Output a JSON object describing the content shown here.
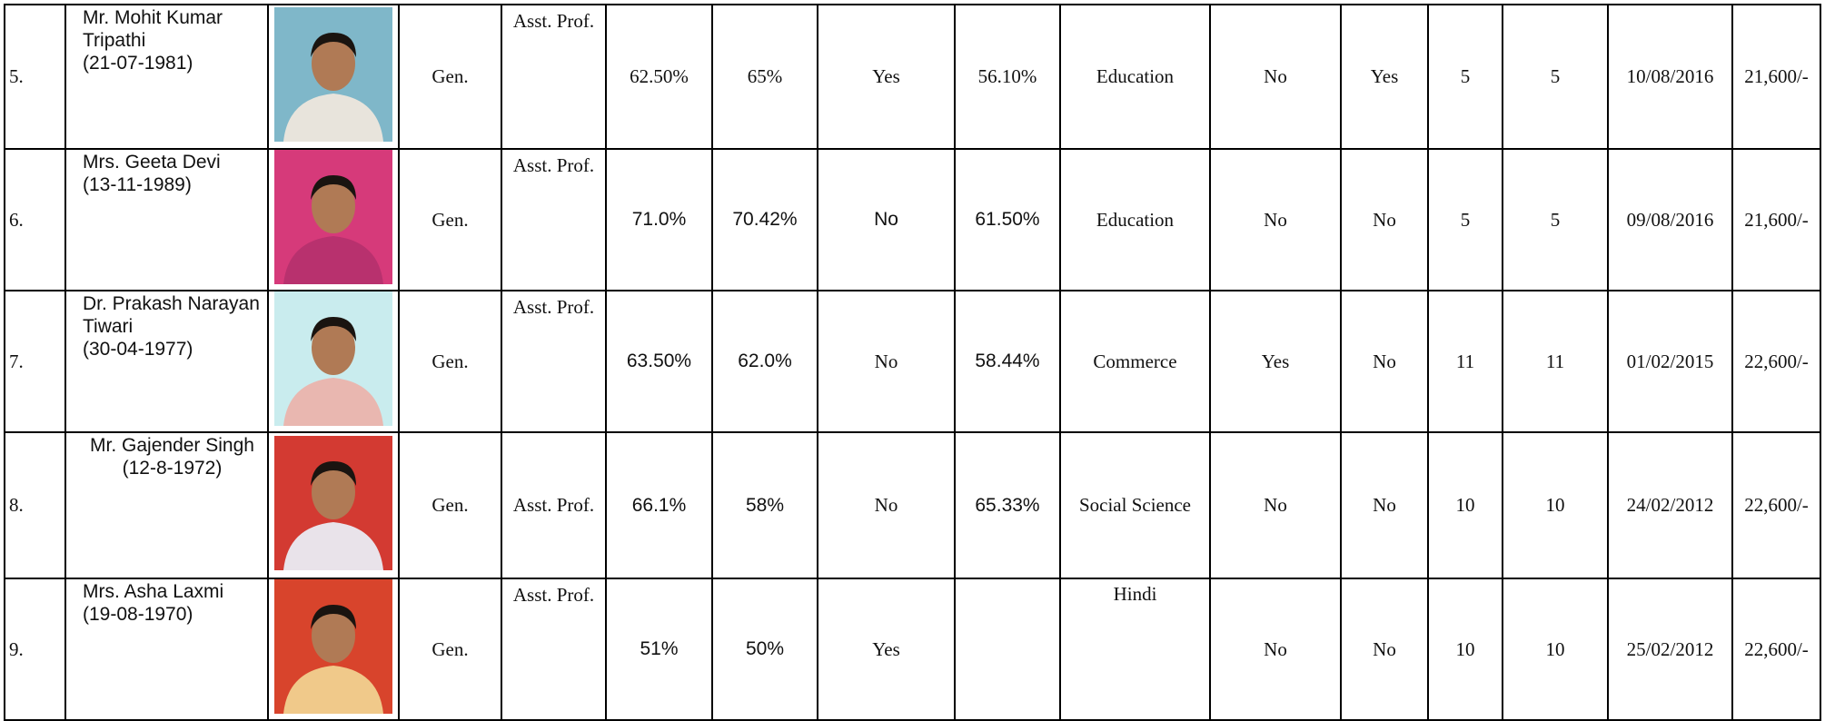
{
  "table": {
    "rows": [
      {
        "sno": "5.",
        "name": "Mr. Mohit Kumar Tripathi",
        "dob": "(21-07-1981)",
        "category": "Gen.",
        "designation": "Asst. Prof.",
        "c1": "62.50%",
        "c2": "65%",
        "c3": "Yes",
        "c4": "56.10%",
        "subject": "Education",
        "c5": "No",
        "c6": "Yes",
        "c7": "5",
        "c8": "5",
        "date": "10/08/2016",
        "pay": "21,600/-"
      },
      {
        "sno": "6.",
        "name": "Mrs. Geeta Devi",
        "dob": "(13-11-1989)",
        "category": "Gen.",
        "designation": "Asst. Prof.",
        "c1": "71.0%",
        "c2": "70.42%",
        "c3": "No",
        "c4": "61.50%",
        "subject": "Education",
        "c5": "No",
        "c6": "No",
        "c7": "5",
        "c8": "5",
        "date": "09/08/2016",
        "pay": "21,600/-"
      },
      {
        "sno": "7.",
        "name": "Dr. Prakash Narayan Tiwari",
        "dob": "(30-04-1977)",
        "category": "Gen.",
        "designation": "Asst. Prof.",
        "c1": "63.50%",
        "c2": "62.0%",
        "c3": "No",
        "c4": "58.44%",
        "subject": "Commerce",
        "c5": "Yes",
        "c6": "No",
        "c7": "11",
        "c8": "11",
        "date": "01/02/2015",
        "pay": "22,600/-"
      },
      {
        "sno": "8.",
        "name": "Mr. Gajender Singh",
        "dob": "(12-8-1972)",
        "category": "Gen.",
        "designation": "Asst. Prof.",
        "c1": "66.1%",
        "c2": "58%",
        "c3": "No",
        "c4": "65.33%",
        "subject": "Social Science",
        "c5": "No",
        "c6": "No",
        "c7": "10",
        "c8": "10",
        "date": "24/02/2012",
        "pay": "22,600/-"
      },
      {
        "sno": "9.",
        "name": "Mrs. Asha Laxmi",
        "dob": "(19-08-1970)",
        "category": "Gen.",
        "designation": "Asst. Prof.",
        "c1": "51%",
        "c2": "50%",
        "c3": "Yes",
        "c4": null,
        "subject": "Hindi",
        "c5": "No",
        "c6": "No",
        "c7": "10",
        "c8": "10",
        "date": "25/02/2012",
        "pay": "22,600/-"
      }
    ]
  }
}
